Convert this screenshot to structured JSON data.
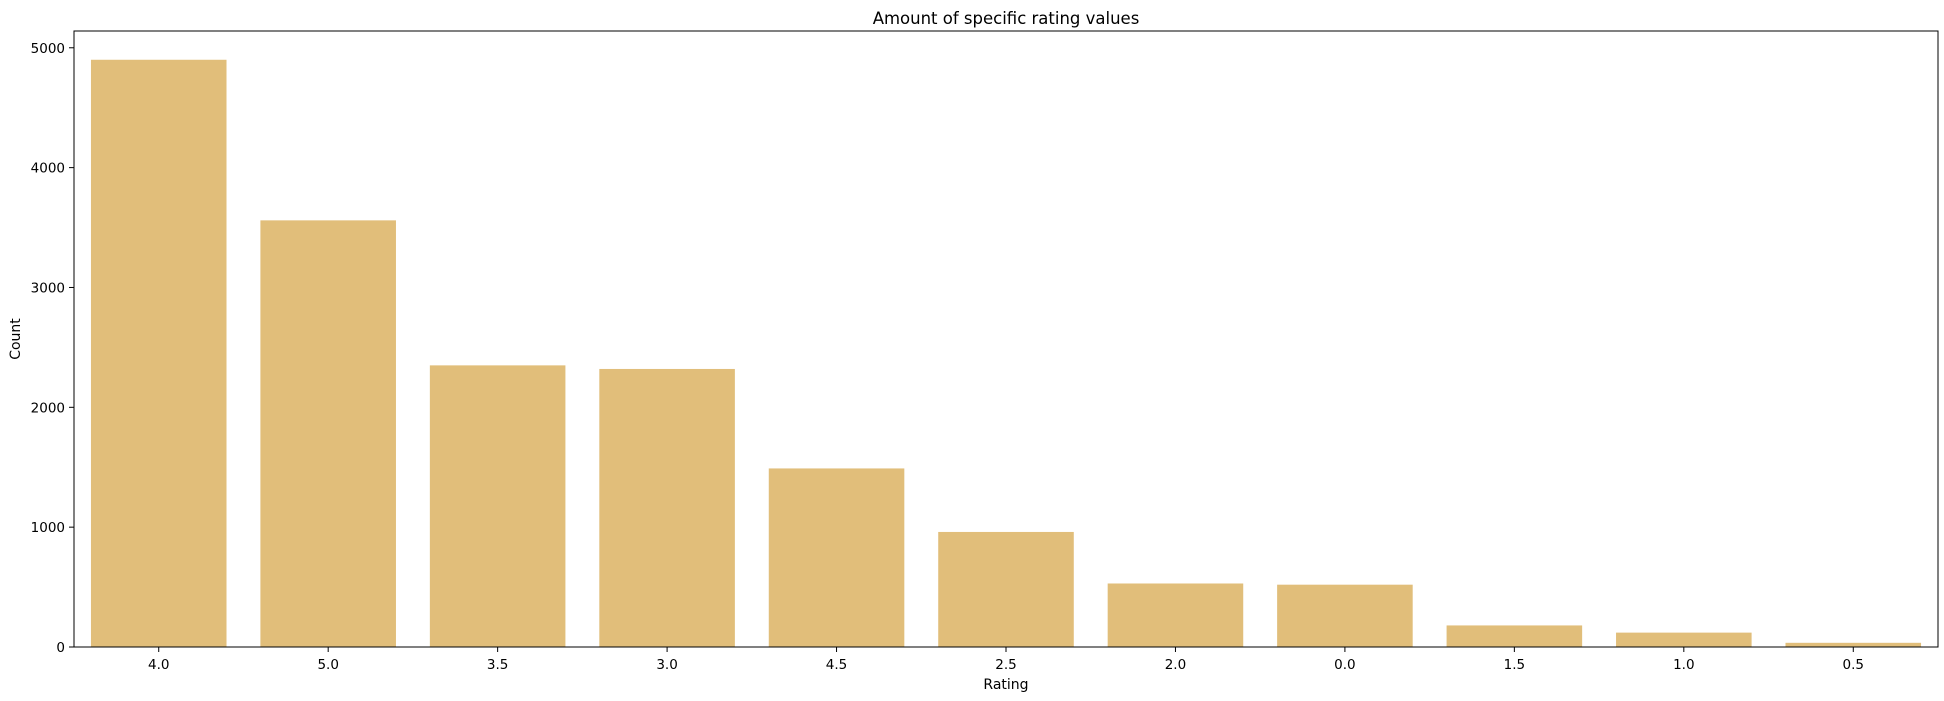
{
  "chart_data": {
    "type": "bar",
    "title": "Amount of specific rating values",
    "xlabel": "Rating",
    "ylabel": "Count",
    "categories": [
      "4.0",
      "5.0",
      "3.5",
      "3.0",
      "4.5",
      "2.5",
      "2.0",
      "0.0",
      "1.5",
      "1.0",
      "0.5"
    ],
    "values": [
      4900,
      3560,
      2350,
      2320,
      1490,
      960,
      530,
      520,
      180,
      120,
      35
    ],
    "ylim": [
      0,
      5140
    ],
    "yticks": [
      0,
      1000,
      2000,
      3000,
      4000,
      5000
    ],
    "bar_color": "#e1be7a",
    "grid": false,
    "legend": "none"
  }
}
